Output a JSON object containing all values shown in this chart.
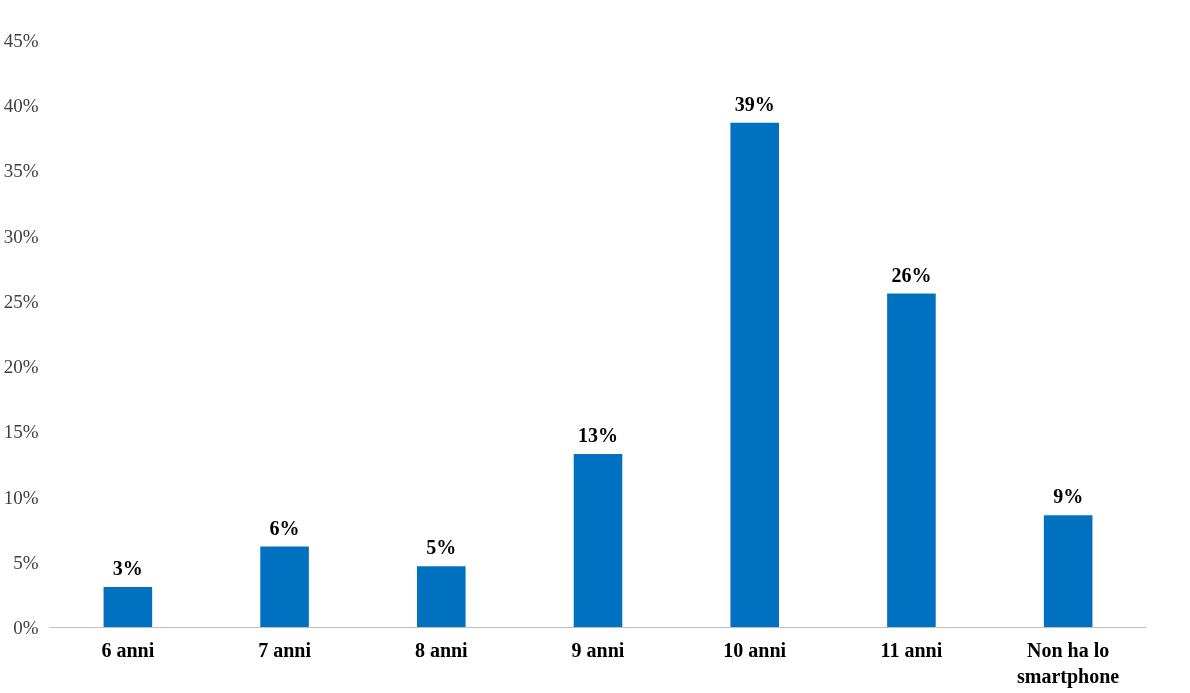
{
  "chart_data": {
    "type": "bar",
    "categories": [
      "6 anni",
      "7 anni",
      "8 anni",
      "9 anni",
      "10 anni",
      "11 anni",
      "Non ha lo smartphone"
    ],
    "values": [
      3.1,
      6.2,
      4.7,
      13.3,
      38.7,
      25.6,
      8.6
    ],
    "value_labels": [
      "3%",
      "6%",
      "5%",
      "13%",
      "39%",
      "26%",
      "9%"
    ],
    "color": "#0070c0",
    "ylim": [
      0,
      45
    ],
    "yticks": [
      {
        "value": 0,
        "label": "0%"
      },
      {
        "value": 5,
        "label": "5%"
      },
      {
        "value": 10,
        "label": "10%"
      },
      {
        "value": 15,
        "label": "15%"
      },
      {
        "value": 20,
        "label": "20%"
      },
      {
        "value": 25,
        "label": "25%"
      },
      {
        "value": 30,
        "label": "30%"
      },
      {
        "value": 35,
        "label": "35%"
      },
      {
        "value": 40,
        "label": "40%"
      },
      {
        "value": 45,
        "label": "45%"
      }
    ],
    "grid": false
  }
}
